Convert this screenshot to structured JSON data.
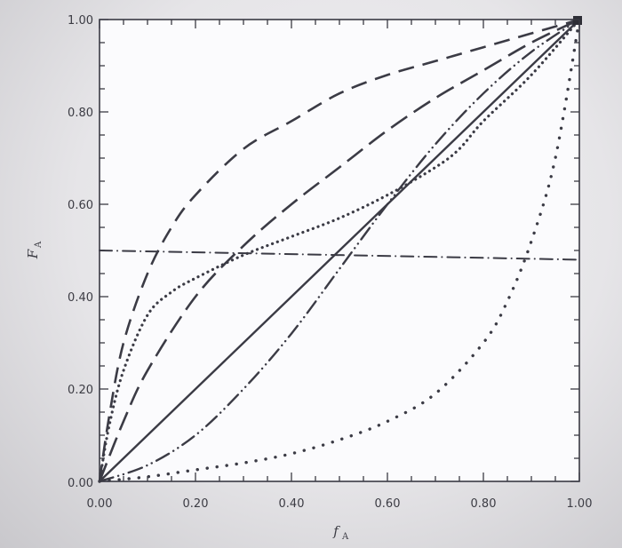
{
  "chart_data": {
    "type": "line",
    "xlabel": "f",
    "xlabel_sub": "A",
    "ylabel": "F",
    "ylabel_sub": "A",
    "xlim": [
      0,
      1
    ],
    "ylim": [
      0,
      1
    ],
    "x_ticks": [
      "0.00",
      "0.20",
      "0.40",
      "0.60",
      "0.80",
      "1.00"
    ],
    "y_ticks": [
      "0.00",
      "0.20",
      "0.40",
      "0.60",
      "0.80",
      "1.00"
    ],
    "grid": false,
    "series": [
      {
        "style": "solid",
        "x": [
          0,
          0.1,
          0.2,
          0.3,
          0.4,
          0.5,
          0.6,
          0.7,
          0.8,
          0.9,
          1.0
        ],
        "y": [
          0,
          0.1,
          0.2,
          0.3,
          0.4,
          0.5,
          0.6,
          0.7,
          0.8,
          0.9,
          1.0
        ]
      },
      {
        "style": "dashed-long",
        "x": [
          0,
          0.02,
          0.05,
          0.1,
          0.15,
          0.2,
          0.3,
          0.4,
          0.5,
          0.6,
          0.7,
          0.8,
          0.9,
          1.0
        ],
        "y": [
          0,
          0.14,
          0.3,
          0.45,
          0.55,
          0.62,
          0.72,
          0.78,
          0.84,
          0.88,
          0.91,
          0.94,
          0.97,
          1.0
        ]
      },
      {
        "style": "dashed-medium",
        "x": [
          0,
          0.05,
          0.1,
          0.2,
          0.3,
          0.4,
          0.5,
          0.6,
          0.7,
          0.8,
          0.9,
          1.0
        ],
        "y": [
          0,
          0.13,
          0.24,
          0.4,
          0.51,
          0.6,
          0.68,
          0.76,
          0.83,
          0.89,
          0.95,
          1.0
        ]
      },
      {
        "style": "dotted-dense",
        "x": [
          0,
          0.02,
          0.05,
          0.1,
          0.15,
          0.2,
          0.3,
          0.4,
          0.5,
          0.6,
          0.7,
          0.75,
          0.8,
          0.9,
          1.0
        ],
        "y": [
          0,
          0.12,
          0.24,
          0.36,
          0.41,
          0.44,
          0.49,
          0.53,
          0.57,
          0.62,
          0.68,
          0.72,
          0.78,
          0.88,
          1.0
        ]
      },
      {
        "style": "dash-dot-dot",
        "x": [
          0,
          0.1,
          0.2,
          0.3,
          0.4,
          0.5,
          0.6,
          0.7,
          0.8,
          0.9,
          1.0
        ],
        "y": [
          0,
          0.035,
          0.1,
          0.2,
          0.32,
          0.46,
          0.6,
          0.73,
          0.84,
          0.93,
          1.0
        ]
      },
      {
        "style": "dotted-sparse",
        "x": [
          0,
          0.1,
          0.2,
          0.3,
          0.4,
          0.5,
          0.6,
          0.7,
          0.8,
          0.85,
          0.9,
          0.95,
          1.0
        ],
        "y": [
          0,
          0.01,
          0.025,
          0.04,
          0.06,
          0.09,
          0.13,
          0.19,
          0.3,
          0.39,
          0.52,
          0.7,
          1.0
        ]
      },
      {
        "style": "dash-dot-horizontal",
        "x": [
          0,
          1.0
        ],
        "y": [
          0.5,
          0.48
        ]
      }
    ]
  }
}
